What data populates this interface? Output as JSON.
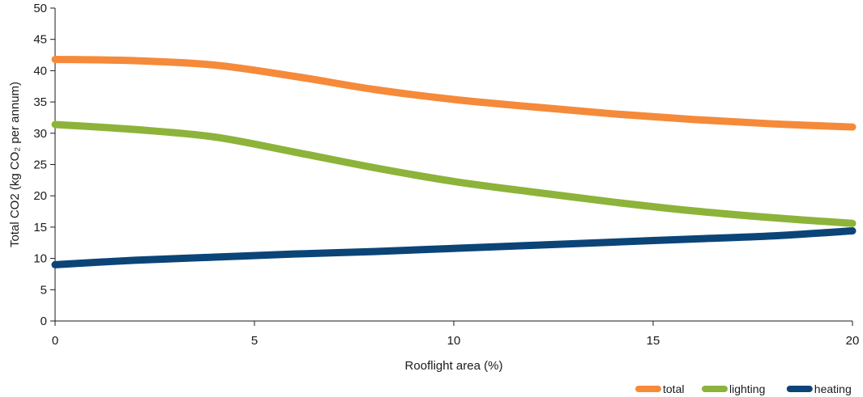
{
  "chart_data": {
    "type": "line",
    "title": "",
    "xlabel": "Rooflight area (%)",
    "ylabel": "Total CO2 (kg CO₂ per annum)",
    "xlim": [
      0,
      20
    ],
    "ylim": [
      0,
      50
    ],
    "x_ticks": [
      "0",
      "5",
      "10",
      "15",
      "20"
    ],
    "y_ticks": [
      "0",
      "5",
      "10",
      "15",
      "20",
      "25",
      "30",
      "35",
      "40",
      "45",
      "50"
    ],
    "grid": false,
    "legend_position": "bottom-right",
    "series": [
      {
        "name": "total",
        "color": "#f58a3a",
        "x": [
          0,
          2,
          4,
          6,
          8,
          10,
          12,
          14,
          16,
          18,
          20
        ],
        "y": [
          41.8,
          41.6,
          40.9,
          39.1,
          37.0,
          35.4,
          34.2,
          33.1,
          32.2,
          31.5,
          31.0
        ]
      },
      {
        "name": "lighting",
        "color": "#8db33a",
        "x": [
          0,
          2,
          4,
          6,
          8,
          10,
          12,
          14,
          16,
          18,
          20
        ],
        "y": [
          31.4,
          30.6,
          29.4,
          27.0,
          24.5,
          22.3,
          20.6,
          19.0,
          17.6,
          16.5,
          15.6
        ]
      },
      {
        "name": "heating",
        "color": "#0b4477",
        "x": [
          0,
          2,
          4,
          6,
          8,
          10,
          12,
          14,
          16,
          18,
          20
        ],
        "y": [
          9.0,
          9.7,
          10.2,
          10.7,
          11.1,
          11.6,
          12.1,
          12.6,
          13.1,
          13.6,
          14.4
        ]
      }
    ]
  }
}
